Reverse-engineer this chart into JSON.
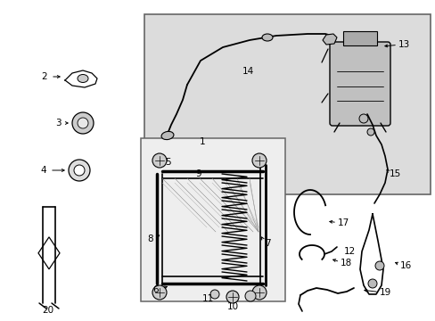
{
  "bg_color": "#ffffff",
  "fig_width": 4.89,
  "fig_height": 3.6,
  "dpi": 100,
  "box_color": "#e0e0e0",
  "box_edge": "#666666"
}
